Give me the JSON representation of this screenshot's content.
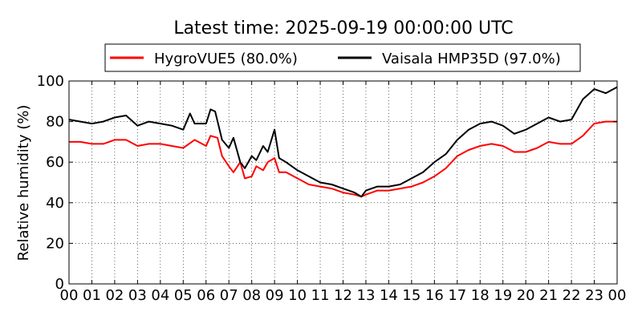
{
  "chart_data": {
    "type": "line",
    "title": "Latest time: 2025-09-19 00:00:00 UTC",
    "xlabel": "",
    "ylabel": "Relative humidity (%)",
    "xlim": [
      0,
      24
    ],
    "ylim": [
      0,
      100
    ],
    "grid": true,
    "legend_position": "top",
    "x_tick_labels": [
      "00",
      "01",
      "02",
      "03",
      "04",
      "05",
      "06",
      "07",
      "08",
      "09",
      "10",
      "11",
      "12",
      "13",
      "14",
      "15",
      "16",
      "17",
      "18",
      "19",
      "20",
      "21",
      "22",
      "23",
      "00"
    ],
    "y_ticks": [
      0,
      20,
      40,
      60,
      80,
      100
    ],
    "series": [
      {
        "name": "HygroVUE5 (80.0%)",
        "color": "#ff0000",
        "x": [
          0,
          0.5,
          1,
          1.5,
          2,
          2.5,
          3,
          3.5,
          4,
          4.5,
          5,
          5.5,
          6,
          6.2,
          6.5,
          6.7,
          7,
          7.2,
          7.5,
          7.7,
          8,
          8.2,
          8.5,
          8.7,
          9,
          9.2,
          9.5,
          10,
          10.5,
          11,
          11.5,
          12,
          12.5,
          12.8,
          13,
          13.5,
          14,
          14.5,
          15,
          15.5,
          16,
          16.5,
          17,
          17.5,
          18,
          18.5,
          19,
          19.5,
          20,
          20.5,
          21,
          21.5,
          22,
          22.5,
          23,
          23.5,
          24
        ],
        "y": [
          70,
          70,
          69,
          69,
          71,
          71,
          68,
          69,
          69,
          68,
          67,
          71,
          68,
          73,
          72,
          63,
          58,
          55,
          60,
          52,
          53,
          58,
          56,
          60,
          62,
          55,
          55,
          52,
          49,
          48,
          47,
          45,
          44,
          43,
          44,
          46,
          46,
          47,
          48,
          50,
          53,
          57,
          63,
          66,
          68,
          69,
          68,
          65,
          65,
          67,
          70,
          69,
          69,
          73,
          79,
          80,
          80
        ]
      },
      {
        "name": "Vaisala HMP35D (97.0%)",
        "color": "#000000",
        "x": [
          0,
          0.5,
          1,
          1.5,
          2,
          2.5,
          3,
          3.5,
          4,
          4.5,
          5,
          5.3,
          5.5,
          6,
          6.2,
          6.4,
          6.7,
          7,
          7.2,
          7.5,
          7.7,
          8,
          8.2,
          8.5,
          8.7,
          9,
          9.2,
          9.5,
          10,
          10.5,
          11,
          11.5,
          12,
          12.5,
          12.8,
          13,
          13.5,
          14,
          14.5,
          15,
          15.5,
          16,
          16.5,
          17,
          17.5,
          18,
          18.5,
          19,
          19.5,
          20,
          20.5,
          21,
          21.5,
          22,
          22.5,
          23,
          23.5,
          24
        ],
        "y": [
          81,
          80,
          79,
          80,
          82,
          83,
          78,
          80,
          79,
          78,
          76,
          84,
          79,
          79,
          86,
          85,
          71,
          67,
          72,
          60,
          57,
          63,
          61,
          68,
          65,
          76,
          62,
          60,
          56,
          53,
          50,
          49,
          47,
          45,
          43,
          46,
          48,
          48,
          49,
          52,
          55,
          60,
          64,
          71,
          76,
          79,
          80,
          78,
          74,
          76,
          79,
          82,
          80,
          81,
          91,
          96,
          94,
          97
        ]
      }
    ]
  }
}
